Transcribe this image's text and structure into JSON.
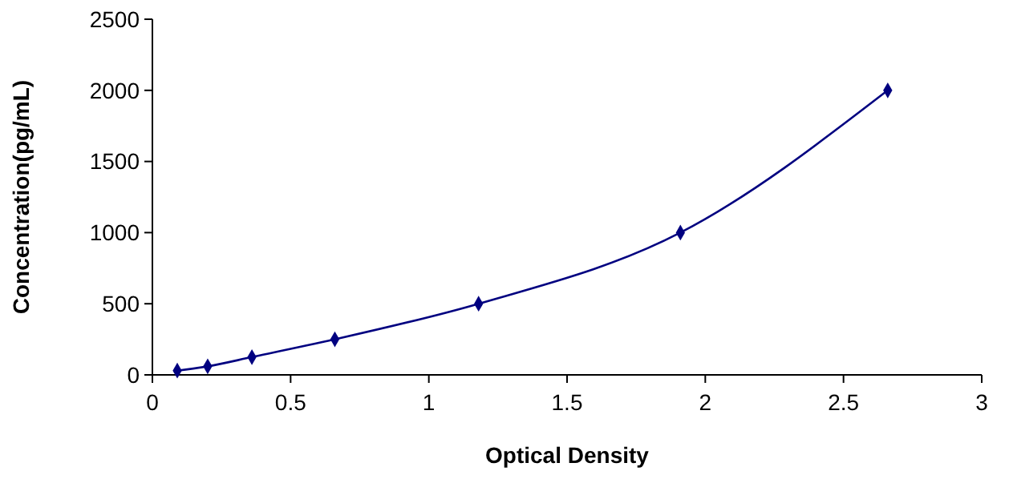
{
  "chart_data": {
    "type": "line",
    "xlabel": "Optical Density",
    "ylabel": "Concentration(pg/mL)",
    "series": [
      {
        "color": "#000080",
        "x": [
          0.09,
          0.2,
          0.36,
          0.66,
          1.18,
          1.91,
          2.66
        ],
        "values": [
          30,
          60,
          125,
          250,
          500,
          1000,
          2000
        ]
      }
    ],
    "xlim": [
      0,
      3
    ],
    "xticks": [
      0,
      0.5,
      1,
      1.5,
      2,
      2.5,
      3
    ],
    "ylim": [
      0,
      2500
    ],
    "yticks": [
      0,
      500,
      1000,
      1500,
      2000,
      2500
    ],
    "grid": false,
    "marker": "diamond",
    "line_style": "solid"
  }
}
